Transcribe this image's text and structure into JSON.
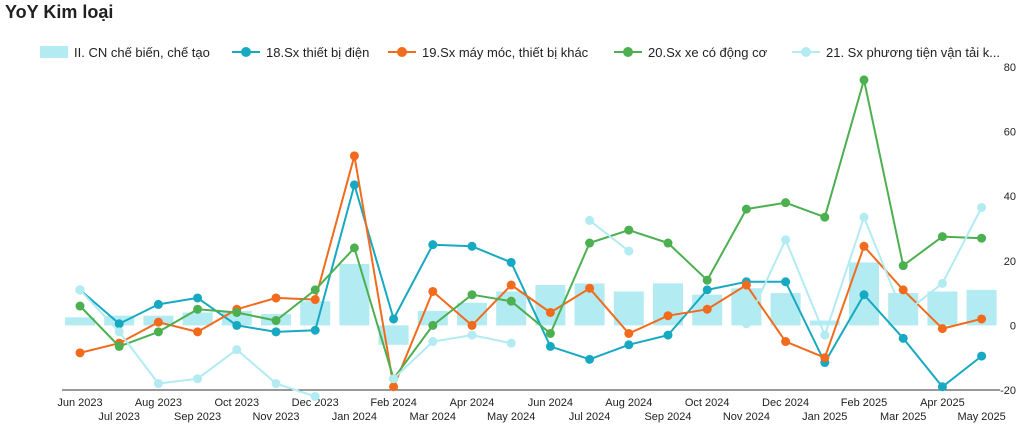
{
  "title": "YoY Kim loại",
  "chart_data": {
    "type": "bar+line",
    "categories": [
      "Jun 2023",
      "Jul 2023",
      "Aug 2023",
      "Sep 2023",
      "Oct 2023",
      "Nov 2023",
      "Dec 2023",
      "Jan 2024",
      "Feb 2024",
      "Mar 2024",
      "Apr 2024",
      "May 2024",
      "Jun 2024",
      "Jul 2024",
      "Aug 2024",
      "Sep 2024",
      "Oct 2024",
      "Nov 2024",
      "Dec 2024",
      "Jan 2025",
      "Feb 2025",
      "Mar 2025",
      "Apr 2025",
      "May 2025"
    ],
    "ylim": [
      -20,
      80
    ],
    "yticks": [
      -20,
      0,
      20,
      40,
      60,
      80
    ],
    "grid": false,
    "legend": "top",
    "series": [
      {
        "name": "II. CN chế biến, chế tạo",
        "kind": "bar",
        "color": "#b2ebf2",
        "values": [
          2.5,
          3,
          3,
          4,
          4.5,
          3.5,
          7.5,
          19,
          -6,
          4.5,
          7,
          10.5,
          12.5,
          13,
          10.5,
          13,
          9.5,
          11.5,
          10,
          1.5,
          19.5,
          10,
          10.5,
          11
        ]
      },
      {
        "name": "18.Sx thiết bị điện",
        "kind": "line",
        "color": "#17a9c2",
        "values": [
          11,
          0.5,
          6.5,
          8.5,
          0,
          -2,
          -1.5,
          43.5,
          2,
          25,
          24.5,
          19.5,
          -6.5,
          -10.5,
          -6,
          -3,
          11,
          13.5,
          13.5,
          -11.5,
          9.5,
          -4,
          -19,
          -9.5
        ]
      },
      {
        "name": "19.Sx máy móc, thiết bị khác",
        "kind": "line",
        "color": "#f26b1d",
        "values": [
          -8.5,
          -5.5,
          1,
          -2,
          5,
          8.5,
          8,
          52.5,
          -19,
          10.5,
          0,
          12.5,
          4,
          11.5,
          -2.5,
          3,
          5,
          12.5,
          -5,
          -10,
          24.5,
          11,
          -1,
          2
        ]
      },
      {
        "name": "20.Sx xe có động cơ",
        "kind": "line",
        "color": "#4caf50",
        "values": [
          6,
          -6.5,
          -2,
          5,
          4,
          1.5,
          11,
          24,
          -16.5,
          0,
          9.5,
          7.5,
          -2.5,
          25.5,
          29.5,
          25.5,
          14,
          36,
          38,
          33.5,
          76,
          18.5,
          27.5,
          27
        ]
      },
      {
        "name": "21. Sx phương tiện vận tải k...",
        "kind": "line",
        "color": "#b2ebf2",
        "values": [
          11,
          -2,
          -18,
          -16.5,
          -7.5,
          -18,
          -22,
          null,
          -16.5,
          -5,
          -3,
          -5.5,
          null,
          32.5,
          23,
          null,
          null,
          0.5,
          26.5,
          -3,
          33.5,
          3.5,
          13,
          36.5
        ]
      }
    ]
  }
}
